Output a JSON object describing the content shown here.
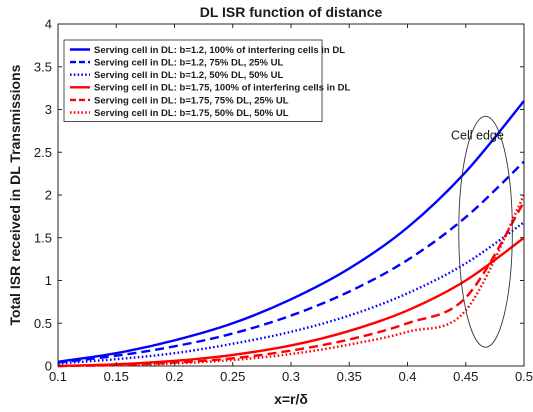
{
  "chart_data": {
    "type": "line",
    "title": "DL  ISR function of distance",
    "xlabel": "x=r/δ",
    "ylabel": "Total ISR received in DL Transmissions",
    "xlim": [
      0.1,
      0.5
    ],
    "ylim": [
      0,
      4
    ],
    "xticks": [
      "0.1",
      "0.15",
      "0.2",
      "0.25",
      "0.3",
      "0.35",
      "0.4",
      "0.45",
      "0.5"
    ],
    "yticks": [
      "0",
      "0.5",
      "1",
      "1.5",
      "2",
      "2.5",
      "3",
      "3.5",
      "4"
    ],
    "grid": false,
    "legend_position": "top-left",
    "x": [
      0.1,
      0.15,
      0.2,
      0.25,
      0.3,
      0.35,
      0.4,
      0.45,
      0.5
    ],
    "series": [
      {
        "name": "Serving cell in DL: b=1.2, 100% of interfering cells in DL",
        "color": "#0000ff",
        "style": "solid",
        "values": [
          0.05,
          0.15,
          0.3,
          0.5,
          0.78,
          1.14,
          1.62,
          2.27,
          3.1
        ]
      },
      {
        "name": "Serving cell in DL: b=1.2, 75% DL, 25% UL",
        "color": "#0000ff",
        "style": "dashed",
        "values": [
          0.04,
          0.12,
          0.23,
          0.38,
          0.59,
          0.87,
          1.24,
          1.74,
          2.39
        ]
      },
      {
        "name": "Serving cell in DL: b=1.2, 50% DL, 50% UL",
        "color": "#0000ff",
        "style": "dotted",
        "values": [
          0.03,
          0.08,
          0.15,
          0.26,
          0.4,
          0.59,
          0.85,
          1.2,
          1.68
        ]
      },
      {
        "name": "Serving cell in DL: b=1.75, 100% of interfering cells in DL",
        "color": "#ff0000",
        "style": "solid",
        "values": [
          0.0,
          0.02,
          0.06,
          0.13,
          0.24,
          0.41,
          0.65,
          1.0,
          1.5
        ]
      },
      {
        "name": "Serving cell in DL: b=1.75, 75% DL, 25% UL",
        "color": "#ff0000",
        "style": "dashed",
        "values": [
          0.0,
          0.01,
          0.04,
          0.09,
          0.18,
          0.31,
          0.5,
          0.8,
          1.92
        ]
      },
      {
        "name": "Serving cell in DL: b=1.75, 50% DL, 50% UL",
        "color": "#ff0000",
        "style": "dotted",
        "values": [
          0.0,
          0.01,
          0.03,
          0.07,
          0.14,
          0.25,
          0.4,
          0.65,
          2.0
        ]
      }
    ],
    "annotations": [
      {
        "text": "Cell edge",
        "x": 0.46,
        "y": 2.65
      }
    ],
    "cell_edge_ellipse": {
      "cx": 0.467,
      "cy": 1.57,
      "rx": 0.023,
      "ry": 1.35
    }
  }
}
